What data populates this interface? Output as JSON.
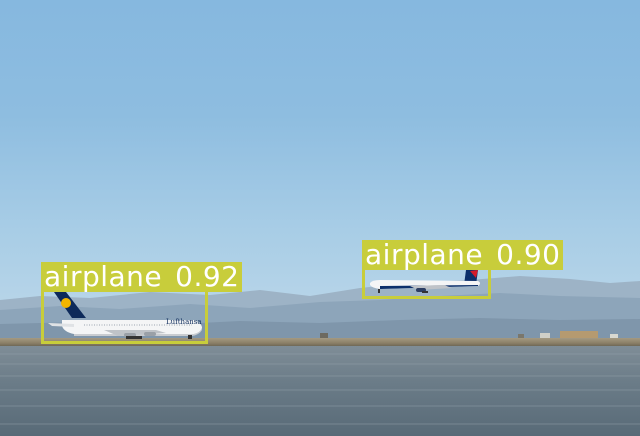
{
  "detections": [
    {
      "label": "airplane",
      "score": "0.92",
      "livery": "Lufthansa"
    },
    {
      "label": "airplane",
      "score": "0.90"
    }
  ],
  "colors": {
    "box": "#c8cd3b",
    "label_text": "#ffffff",
    "sky": "#8ebde0",
    "water": "#6b7c88"
  }
}
